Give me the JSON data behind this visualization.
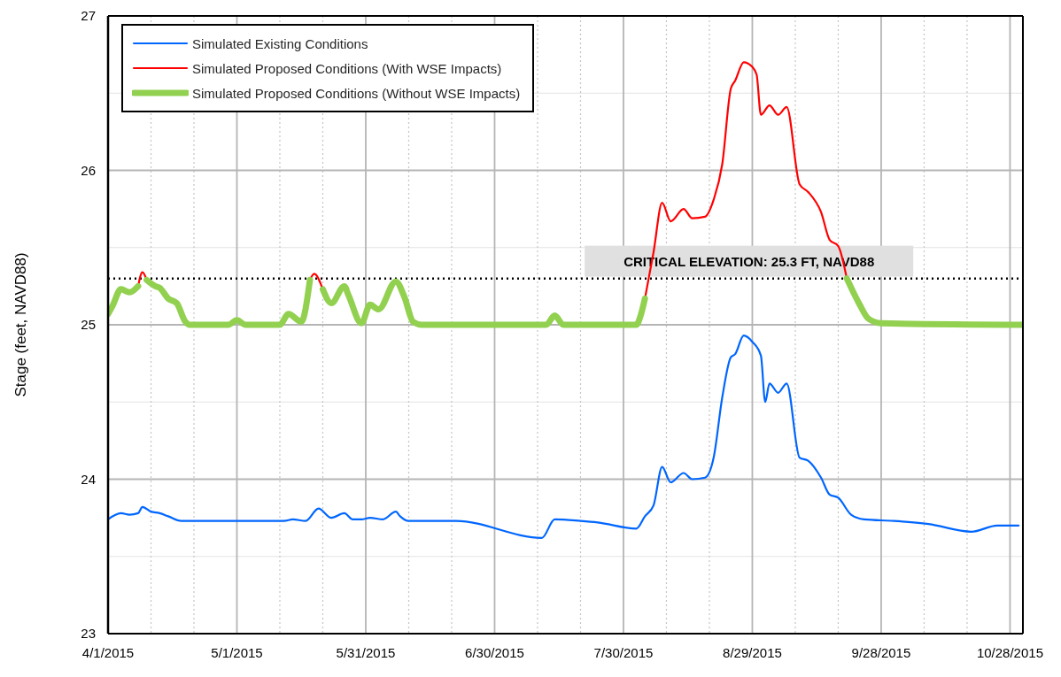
{
  "chart_data": {
    "type": "line",
    "ylabel": "Stage (feet, NAVD88)",
    "xlim": [
      "2015-04-01",
      "2015-10-31"
    ],
    "xticks": [
      {
        "value": "2015-04-01",
        "label": "4/1/2015"
      },
      {
        "value": "2015-04-11",
        "label": null
      },
      {
        "value": "2015-04-21",
        "label": null
      },
      {
        "value": "2015-05-01",
        "label": "5/1/2015"
      },
      {
        "value": "2015-05-11",
        "label": null
      },
      {
        "value": "2015-05-21",
        "label": null
      },
      {
        "value": "2015-05-31",
        "label": "5/31/2015"
      },
      {
        "value": "2015-06-10",
        "label": null
      },
      {
        "value": "2015-06-20",
        "label": null
      },
      {
        "value": "2015-06-30",
        "label": "6/30/2015"
      },
      {
        "value": "2015-07-10",
        "label": null
      },
      {
        "value": "2015-07-20",
        "label": null
      },
      {
        "value": "2015-07-30",
        "label": "7/30/2015"
      },
      {
        "value": "2015-08-09",
        "label": null
      },
      {
        "value": "2015-08-19",
        "label": null
      },
      {
        "value": "2015-08-29",
        "label": "8/29/2015"
      },
      {
        "value": "2015-09-08",
        "label": null
      },
      {
        "value": "2015-09-18",
        "label": null
      },
      {
        "value": "2015-09-28",
        "label": "9/28/2015"
      },
      {
        "value": "2015-10-08",
        "label": null
      },
      {
        "value": "2015-10-18",
        "label": null
      },
      {
        "value": "2015-10-28",
        "label": "10/28/2015"
      }
    ],
    "ylim": [
      23,
      27
    ],
    "yticks": [
      23,
      {
        "value": 23.5,
        "label": null
      },
      24,
      {
        "value": 24.5,
        "label": null
      },
      25,
      {
        "value": 25.5,
        "label": null
      },
      26,
      {
        "value": 26.5,
        "label": null
      },
      27
    ],
    "grid": true,
    "legend": "top left",
    "marker": "none",
    "line_style": "solid",
    "ref_lines": [
      {
        "axis": "y",
        "value": 25.3,
        "label": "CRITICAL ELEVATION: 25.3 FT, NAVD88",
        "color": "#000000",
        "line_style": "dotted"
      }
    ],
    "series": [
      {
        "name": "Simulated Existing Conditions",
        "color": "#0066ff",
        "x": [
          "2015-04-01",
          "2015-04-04",
          "2015-04-06",
          "2015-04-08",
          "2015-04-09",
          "2015-04-11",
          "2015-04-13",
          "2015-04-15",
          "2015-04-18",
          "2015-04-29",
          "2015-05-12",
          "2015-05-14",
          "2015-05-17",
          "2015-05-20",
          "2015-05-23",
          "2015-05-26",
          "2015-05-28",
          "2015-05-30",
          "2015-06-01",
          "2015-06-04",
          "2015-06-07",
          "2015-06-08",
          "2015-06-10",
          "2015-06-21",
          "2015-07-11",
          "2015-07-14",
          "2015-07-20",
          "2015-07-24",
          "2015-08-02",
          "2015-08-04",
          "2015-08-06",
          "2015-08-08",
          "2015-08-10",
          "2015-08-13",
          "2015-08-15",
          "2015-08-18",
          "2015-08-20",
          "2015-08-22",
          "2015-08-24",
          "2015-08-25",
          "2015-08-27",
          "2015-08-29",
          "2015-08-31",
          "2015-09-01",
          "2015-09-02",
          "2015-09-04",
          "2015-09-06",
          "2015-09-09",
          "2015-09-11",
          "2015-09-14",
          "2015-09-16",
          "2015-09-18",
          "2015-09-21",
          "2015-09-24",
          "2015-10-01",
          "2015-10-09",
          "2015-10-19",
          "2015-10-25",
          "2015-10-28",
          "2015-10-30"
        ],
        "values": [
          23.74,
          23.78,
          23.77,
          23.78,
          23.82,
          23.79,
          23.78,
          23.76,
          23.73,
          23.73,
          23.73,
          23.74,
          23.73,
          23.81,
          23.75,
          23.78,
          23.74,
          23.74,
          23.75,
          23.74,
          23.79,
          23.76,
          23.73,
          23.73,
          23.62,
          23.74,
          23.73,
          23.72,
          23.68,
          23.76,
          23.83,
          24.08,
          23.98,
          24.04,
          24.0,
          24.01,
          24.14,
          24.53,
          24.79,
          24.81,
          24.93,
          24.89,
          24.8,
          24.5,
          24.62,
          24.56,
          24.62,
          24.14,
          24.12,
          24.01,
          23.9,
          23.88,
          23.77,
          23.74,
          23.73,
          23.71,
          23.66,
          23.7,
          23.7,
          23.7
        ]
      },
      {
        "name": "Simulated Proposed Conditions (With WSE Impacts)",
        "color": "#ff0000",
        "x": [
          "2015-04-08",
          "2015-04-09",
          "2015-04-10",
          "2015-04-30",
          "2015-05-18",
          "2015-05-19",
          "2015-05-21",
          "2015-07-01",
          "2015-08-04",
          "2015-08-06",
          "2015-08-08",
          "2015-08-10",
          "2015-08-13",
          "2015-08-15",
          "2015-08-18",
          "2015-08-20",
          "2015-08-22",
          "2015-08-24",
          "2015-08-25",
          "2015-08-27",
          "2015-08-29",
          "2015-08-30",
          "2015-08-31",
          "2015-09-02",
          "2015-09-04",
          "2015-09-06",
          "2015-09-09",
          "2015-09-11",
          "2015-09-14",
          "2015-09-16",
          "2015-09-18",
          "2015-09-20"
        ],
        "values": [
          25.25,
          25.34,
          25.29,
          null,
          25.29,
          25.33,
          25.23,
          null,
          25.17,
          25.47,
          25.79,
          25.67,
          25.75,
          25.69,
          25.7,
          25.81,
          26.04,
          26.53,
          26.58,
          26.7,
          26.67,
          26.62,
          26.36,
          26.42,
          26.36,
          26.41,
          25.91,
          25.86,
          25.73,
          25.55,
          25.51,
          25.3
        ]
      },
      {
        "name": "Simulated Proposed Conditions (Without WSE Impacts)",
        "color": "#92d050",
        "x": [
          "2015-04-01",
          "2015-04-02",
          "2015-04-04",
          "2015-04-06",
          "2015-04-08",
          "2015-04-09",
          "2015-04-10",
          "2015-04-12",
          "2015-04-13",
          "2015-04-15",
          "2015-04-17",
          "2015-04-19",
          "2015-04-20",
          "2015-04-29",
          "2015-05-01",
          "2015-05-03",
          "2015-05-11",
          "2015-05-13",
          "2015-05-16",
          "2015-05-18",
          "2015-05-19",
          "2015-05-21",
          "2015-05-23",
          "2015-05-26",
          "2015-05-27",
          "2015-05-30",
          "2015-06-01",
          "2015-06-03",
          "2015-06-07",
          "2015-06-09",
          "2015-06-11",
          "2015-06-13",
          "2015-07-12",
          "2015-07-14",
          "2015-07-16",
          "2015-08-02",
          "2015-08-03",
          "2015-08-04",
          "2015-08-20",
          "2015-09-20",
          "2015-09-23",
          "2015-09-25",
          "2015-09-28",
          "2015-10-31"
        ],
        "values": [
          25.07,
          25.12,
          25.23,
          25.21,
          25.25,
          null,
          25.29,
          25.25,
          25.24,
          25.17,
          25.14,
          25.02,
          25.0,
          25.0,
          25.03,
          25.0,
          25.0,
          25.07,
          25.02,
          25.29,
          null,
          25.23,
          25.14,
          25.25,
          25.19,
          25.01,
          25.13,
          25.1,
          25.28,
          25.18,
          25.02,
          25.0,
          25.0,
          25.06,
          25.0,
          25.0,
          25.06,
          25.17,
          null,
          25.3,
          25.13,
          25.04,
          25.01,
          25.0
        ]
      }
    ]
  }
}
